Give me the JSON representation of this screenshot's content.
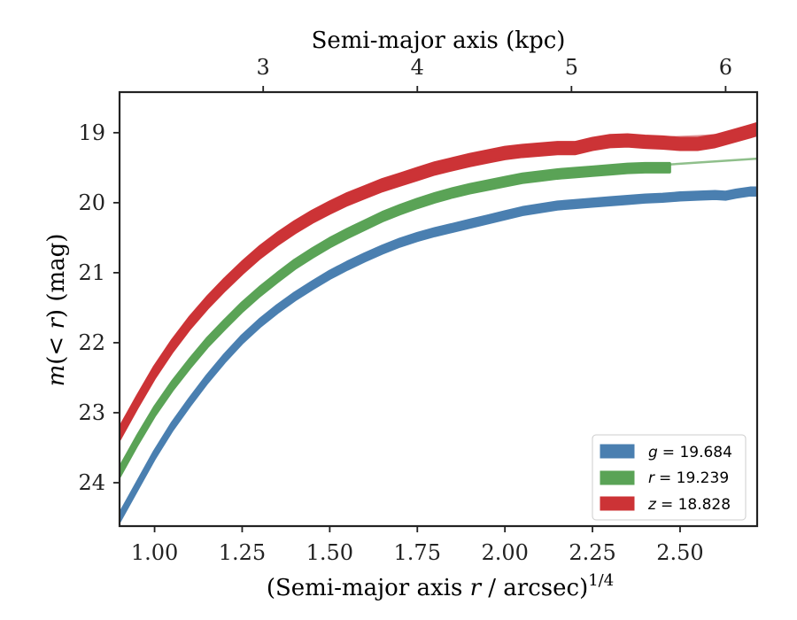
{
  "chart_data": {
    "type": "line",
    "title": "",
    "xlabel": "(Semi-major axis r / arcsec)^1/4",
    "xlabel_parts": {
      "pre": "(Semi-major axis ",
      "var": "r",
      "post": " / arcsec)",
      "sup": "1/4"
    },
    "ylabel": "m(< r) (mag)",
    "ylabel_parts": {
      "var": "m",
      "mid": "(< ",
      "var2": "r",
      "post": ") (mag)"
    },
    "top_xlabel": "Semi-major axis (kpc)",
    "xlim": [
      0.9,
      2.72
    ],
    "ylim": [
      24.62,
      18.42
    ],
    "y_inverted": true,
    "xticks": [
      1.0,
      1.25,
      1.5,
      1.75,
      2.0,
      2.25,
      2.5
    ],
    "xtick_labels": [
      "1.00",
      "1.25",
      "1.50",
      "1.75",
      "2.00",
      "2.25",
      "2.50"
    ],
    "yticks": [
      19,
      20,
      21,
      22,
      23,
      24
    ],
    "ytick_labels": [
      "19",
      "20",
      "21",
      "22",
      "23",
      "24"
    ],
    "top_xticks": [
      3,
      4,
      5,
      6
    ],
    "top_xtick_positions": [
      1.31,
      1.75,
      2.19,
      2.63
    ],
    "top_xtick_labels": [
      "3",
      "4",
      "5",
      "6"
    ],
    "grid": false,
    "legend_position": "bottom-right",
    "series": [
      {
        "name": "g = 19.684",
        "legend_var": "g",
        "legend_value": "= 19.684",
        "color": "#4a7fb0",
        "x": [
          0.9,
          0.95,
          1.0,
          1.05,
          1.1,
          1.15,
          1.2,
          1.25,
          1.3,
          1.35,
          1.4,
          1.45,
          1.5,
          1.55,
          1.6,
          1.65,
          1.7,
          1.75,
          1.8,
          1.85,
          1.9,
          1.95,
          2.0,
          2.05,
          2.1,
          2.15,
          2.2,
          2.25,
          2.3,
          2.35,
          2.4,
          2.45,
          2.5,
          2.55,
          2.6,
          2.63,
          2.66,
          2.7,
          2.72
        ],
        "y": [
          24.5,
          24.05,
          23.6,
          23.2,
          22.85,
          22.52,
          22.22,
          21.95,
          21.72,
          21.52,
          21.34,
          21.18,
          21.03,
          20.9,
          20.78,
          20.67,
          20.57,
          20.49,
          20.42,
          20.36,
          20.3,
          20.24,
          20.18,
          20.12,
          20.08,
          20.04,
          20.02,
          20.0,
          19.98,
          19.96,
          19.94,
          19.93,
          19.91,
          19.9,
          19.89,
          19.9,
          19.87,
          19.84,
          19.84
        ],
        "band": 0.05
      },
      {
        "name": "r = 19.239",
        "legend_var": "r",
        "legend_value": "= 19.239",
        "color": "#5aa356",
        "x": [
          0.9,
          0.95,
          1.0,
          1.05,
          1.1,
          1.15,
          1.2,
          1.25,
          1.3,
          1.35,
          1.4,
          1.45,
          1.5,
          1.55,
          1.6,
          1.65,
          1.7,
          1.75,
          1.8,
          1.85,
          1.9,
          1.95,
          2.0,
          2.05,
          2.1,
          2.15,
          2.2,
          2.25,
          2.3,
          2.35,
          2.4,
          2.45,
          2.47
        ],
        "y": [
          23.85,
          23.4,
          22.98,
          22.62,
          22.3,
          22.0,
          21.74,
          21.49,
          21.27,
          21.07,
          20.88,
          20.72,
          20.57,
          20.44,
          20.32,
          20.2,
          20.1,
          20.01,
          19.93,
          19.86,
          19.8,
          19.75,
          19.7,
          19.65,
          19.62,
          19.59,
          19.57,
          19.55,
          19.53,
          19.51,
          19.5,
          19.5,
          19.5
        ],
        "band": 0.06
      },
      {
        "name": "z = 18.828",
        "legend_var": "z",
        "legend_value": "= 18.828",
        "color": "#cc3336",
        "x": [
          0.9,
          0.95,
          1.0,
          1.05,
          1.1,
          1.15,
          1.2,
          1.25,
          1.3,
          1.35,
          1.4,
          1.45,
          1.5,
          1.55,
          1.6,
          1.65,
          1.7,
          1.75,
          1.8,
          1.85,
          1.9,
          1.95,
          2.0,
          2.05,
          2.1,
          2.15,
          2.2,
          2.25,
          2.3,
          2.35,
          2.4,
          2.45,
          2.5,
          2.55,
          2.6,
          2.65,
          2.7,
          2.72
        ],
        "y": [
          23.3,
          22.85,
          22.42,
          22.05,
          21.72,
          21.43,
          21.17,
          20.93,
          20.71,
          20.52,
          20.35,
          20.2,
          20.07,
          19.95,
          19.85,
          19.75,
          19.67,
          19.59,
          19.51,
          19.45,
          19.39,
          19.34,
          19.29,
          19.26,
          19.24,
          19.22,
          19.22,
          19.16,
          19.12,
          19.11,
          19.13,
          19.14,
          19.16,
          19.16,
          19.12,
          19.05,
          18.98,
          18.95
        ],
        "band": 0.08
      }
    ],
    "model_lines": [
      {
        "color": "#8fbf8b",
        "x": [
          2.2,
          2.45,
          2.72
        ],
        "y": [
          19.55,
          19.46,
          19.37
        ]
      },
      {
        "color": "#e09597",
        "x": [
          2.35,
          2.55,
          2.72
        ],
        "y": [
          19.09,
          19.05,
          19.0
        ]
      },
      {
        "color": "#9fbbd6",
        "x": [
          2.4,
          2.55,
          2.72
        ],
        "y": [
          19.93,
          19.88,
          19.82
        ]
      }
    ]
  }
}
